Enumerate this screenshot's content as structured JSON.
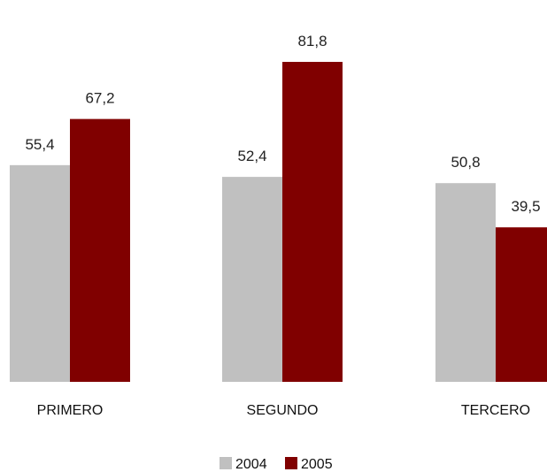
{
  "chart_data": {
    "type": "bar",
    "categories": [
      "PRIMERO",
      "SEGUNDO",
      "TERCERO"
    ],
    "series": [
      {
        "name": "2004",
        "values": [
          55.4,
          52.4,
          50.8
        ],
        "labels": [
          "55,4",
          "52,4",
          "50,8"
        ],
        "color": "#c0c0c0"
      },
      {
        "name": "2005",
        "values": [
          67.2,
          81.8,
          39.5
        ],
        "labels": [
          "67,2",
          "81,8",
          "39,5"
        ],
        "color": "#800000"
      }
    ],
    "ylim": [
      0,
      87
    ],
    "grid": false,
    "legend_position": "bottom-center"
  }
}
